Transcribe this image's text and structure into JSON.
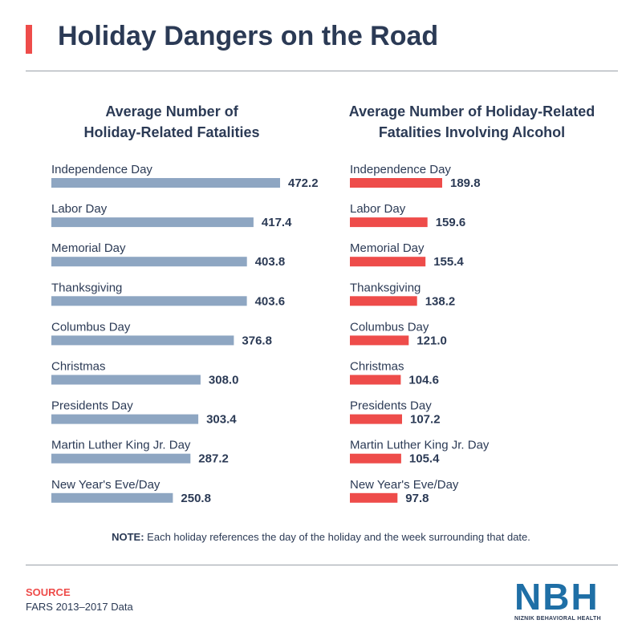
{
  "title": "Holiday Dangers on the Road",
  "colors": {
    "accent": "#ee4c4a",
    "left_bar": "#8ea6c2",
    "right_bar": "#ee4c4a",
    "text": "#2b3a55"
  },
  "chart_data": [
    {
      "type": "bar",
      "orientation": "horizontal",
      "title_lines": [
        "Average Number of",
        "Holiday-Related Fatalities"
      ],
      "categories": [
        "Independence Day",
        "Labor Day",
        "Memorial Day",
        "Thanksgiving",
        "Columbus Day",
        "Christmas",
        "Presidents Day",
        "Martin Luther King Jr. Day",
        "New Year's Eve/Day"
      ],
      "values": [
        472.2,
        417.4,
        403.8,
        403.6,
        376.8,
        308.0,
        303.4,
        287.2,
        250.8
      ],
      "value_labels": [
        "472.2",
        "417.4",
        "403.8",
        "403.6",
        "376.8",
        "308.0",
        "303.4",
        "287.2",
        "250.8"
      ]
    },
    {
      "type": "bar",
      "orientation": "horizontal",
      "title_lines": [
        "Average Number of Holiday-Related",
        "Fatalities Involving Alcohol"
      ],
      "categories": [
        "Independence Day",
        "Labor Day",
        "Memorial Day",
        "Thanksgiving",
        "Columbus Day",
        "Christmas",
        "Presidents Day",
        "Martin Luther King Jr. Day",
        "New Year's Eve/Day"
      ],
      "values": [
        189.8,
        159.6,
        155.4,
        138.2,
        121.0,
        104.6,
        107.2,
        105.4,
        97.8
      ],
      "value_labels": [
        "189.8",
        "159.6",
        "155.4",
        "138.2",
        "121.0",
        "104.6",
        "107.2",
        "105.4",
        "97.8"
      ]
    }
  ],
  "note": {
    "label": "NOTE:",
    "text": " Each holiday references the day of the holiday and the week surrounding that date."
  },
  "source": {
    "label": "SOURCE",
    "text": "FARS 2013–2017 Data"
  },
  "logo": {
    "letters": "NBH",
    "name": "NIZNIK BEHAVIORAL HEALTH"
  }
}
